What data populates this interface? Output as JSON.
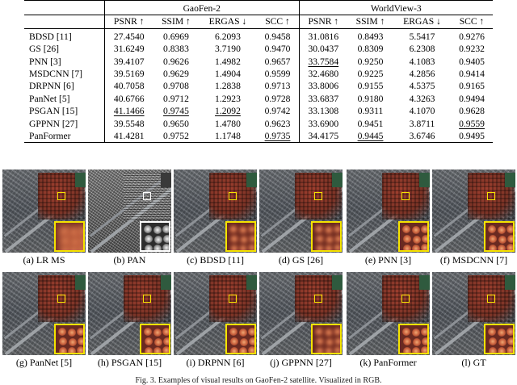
{
  "table": {
    "groups": [
      "GaoFen-2",
      "WorldView-3"
    ],
    "metrics": [
      "PSNR ↑",
      "SSIM ↑",
      "ERGAS ↓",
      "SCC ↑",
      "PSNR ↑",
      "SSIM ↑",
      "ERGAS ↓",
      "SCC ↑"
    ],
    "rows": [
      {
        "method": "BDSD [11]",
        "values": [
          "27.4540",
          "0.6969",
          "6.2093",
          "0.9458",
          "31.0816",
          "0.8493",
          "5.5417",
          "0.9276"
        ]
      },
      {
        "method": "GS [26]",
        "values": [
          "31.6249",
          "0.8383",
          "3.7190",
          "0.9470",
          "30.0437",
          "0.8309",
          "6.2308",
          "0.9232"
        ]
      },
      {
        "method": "PNN [3]",
        "values": [
          "39.4107",
          "0.9626",
          "1.4982",
          "0.9657",
          "33.7584",
          "0.9250",
          "4.1083",
          "0.9405"
        ]
      },
      {
        "method": "MSDCNN [7]",
        "values": [
          "39.5169",
          "0.9629",
          "1.4904",
          "0.9599",
          "32.4680",
          "0.9225",
          "4.2856",
          "0.9414"
        ]
      },
      {
        "method": "DRPNN [6]",
        "values": [
          "40.7058",
          "0.9708",
          "1.2838",
          "0.9713",
          "33.8006",
          "0.9155",
          "4.5375",
          "0.9165"
        ]
      },
      {
        "method": "PanNet [5]",
        "values": [
          "40.6766",
          "0.9712",
          "1.2923",
          "0.9728",
          "33.6837",
          "0.9180",
          "4.3263",
          "0.9494"
        ]
      },
      {
        "method": "PSGAN [15]",
        "values": [
          "41.1466",
          "0.9745",
          "1.2092",
          "0.9742",
          "33.1308",
          "0.9311",
          "4.1070",
          "0.9628"
        ]
      },
      {
        "method": "GPPNN [27]",
        "values": [
          "39.5548",
          "0.9650",
          "1.4780",
          "0.9623",
          "33.6900",
          "0.9451",
          "3.8711",
          "0.9559"
        ]
      },
      {
        "method": "PanFormer",
        "values": [
          "41.4281",
          "0.9752",
          "1.1748",
          "0.9735",
          "34.4175",
          "0.9445",
          "3.6746",
          "0.9495"
        ]
      }
    ]
  },
  "figure": {
    "panels": [
      "(a) LR MS",
      "(b) PAN",
      "(c) BDSD [11]",
      "(d) GS [26]",
      "(e) PNN [3]",
      "(f) MSDCNN [7]",
      "(g) PanNet [5]",
      "(h) PSGAN [15]",
      "(i) DRPNN [6]",
      "(j) GPPNN [27]",
      "(k) PanFormer",
      "(l) GT"
    ],
    "caption": "Fig. 3. Examples of visual results on GaoFen-2 satellite. Visualized in RGB."
  },
  "colors": {
    "highlight_box": "#f5e400",
    "rule": "#000000"
  }
}
